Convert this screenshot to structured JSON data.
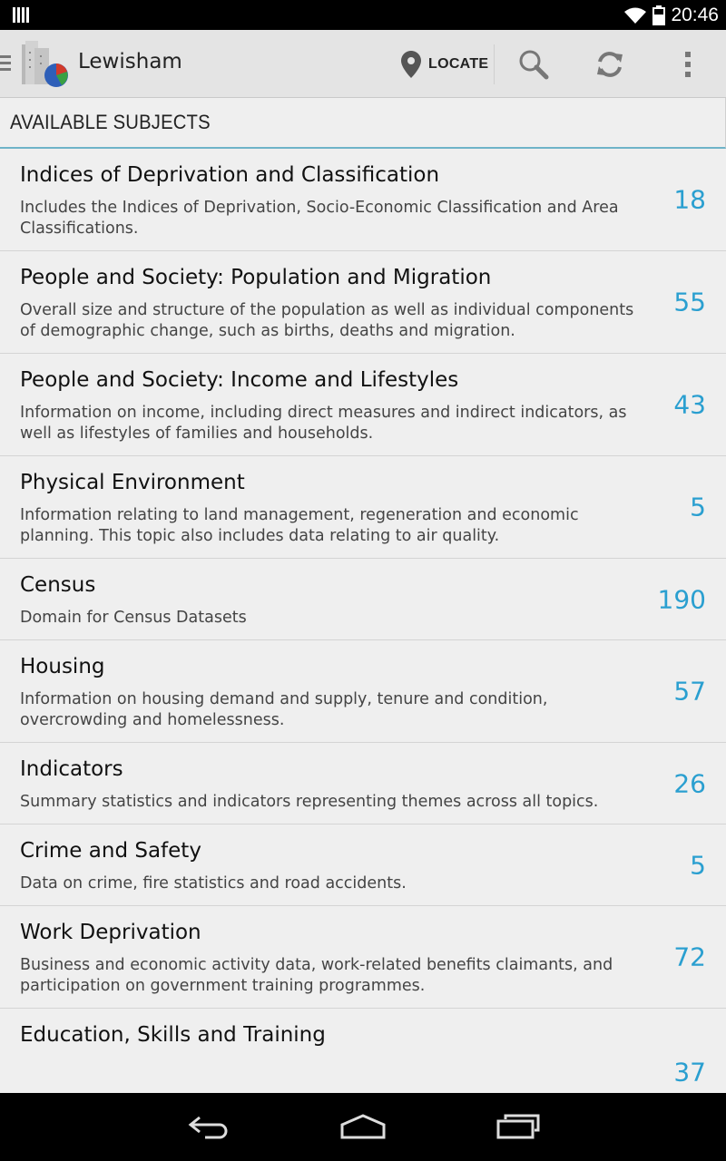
{
  "status_bar": {
    "time": "20:46",
    "icons": [
      "notification-icon",
      "wifi-icon",
      "battery-icon"
    ]
  },
  "app_bar": {
    "title": "Lewisham",
    "locate_label": "LOCATE",
    "actions": [
      "location-pin-icon",
      "search-icon",
      "refresh-icon",
      "overflow-menu-icon"
    ]
  },
  "section": {
    "header": "AVAILABLE SUBJECTS"
  },
  "subjects": [
    {
      "title": "Indices of Deprivation and Classification",
      "description": "Includes the Indices of Deprivation, Socio-Economic Classification and Area Classifications.",
      "count": "18"
    },
    {
      "title": "People and Society: Population and Migration",
      "description": "Overall size and structure of the population as well as individual components of demographic change, such as births, deaths and migration.",
      "count": "55"
    },
    {
      "title": "People and Society: Income and Lifestyles",
      "description": "Information on income, including direct measures and indirect indicators, as well as lifestyles of families and households.",
      "count": "43"
    },
    {
      "title": "Physical Environment",
      "description": "Information relating to land management, regeneration and economic planning. This topic also includes data relating to air quality.",
      "count": "5"
    },
    {
      "title": "Census",
      "description": "Domain for Census Datasets",
      "count": "190"
    },
    {
      "title": "Housing",
      "description": "Information on housing demand and supply, tenure and condition, overcrowding and homelessness.",
      "count": "57"
    },
    {
      "title": "Indicators",
      "description": "Summary statistics and indicators representing themes across all topics.",
      "count": "26"
    },
    {
      "title": "Crime and Safety",
      "description": "Data on crime, fire statistics and road accidents.",
      "count": "5"
    },
    {
      "title": "Work Deprivation",
      "description": "Business and economic activity data, work-related benefits claimants, and participation on government training programmes.",
      "count": "72"
    },
    {
      "title": "Education, Skills and Training",
      "description": "",
      "count": "37"
    }
  ],
  "nav_bar": {
    "buttons": [
      "back-icon",
      "home-icon",
      "recent-apps-icon"
    ]
  },
  "colors": {
    "accent": "#2a9fd0",
    "header_underline": "#6fb3c8",
    "appbar_bg": "#e4e4e4",
    "content_bg": "#efefef"
  }
}
